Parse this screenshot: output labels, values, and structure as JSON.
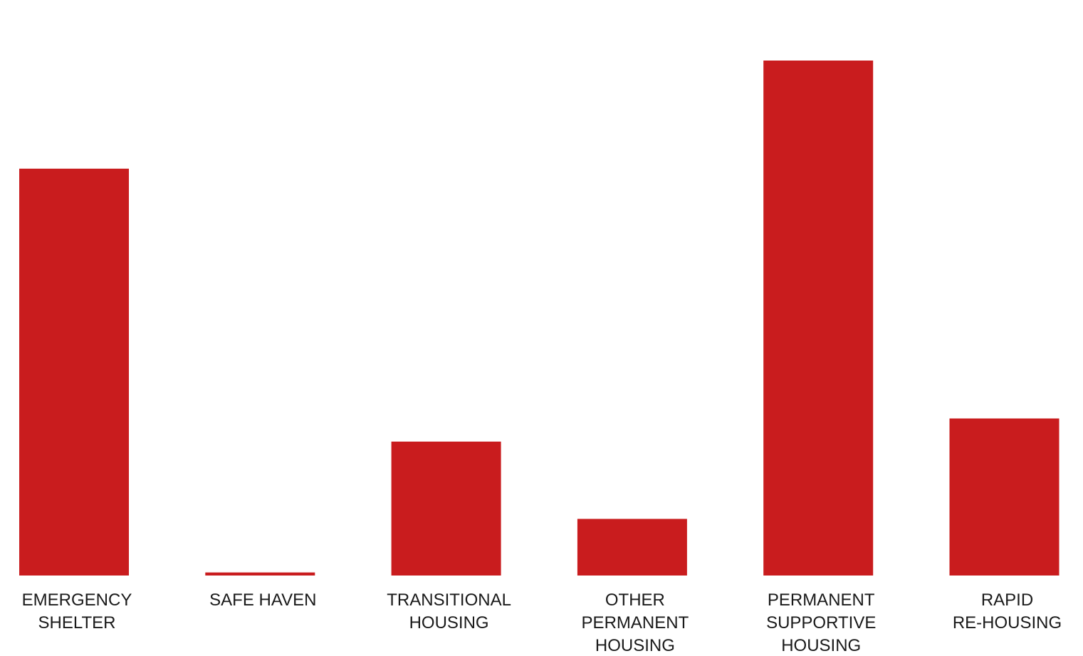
{
  "chart_data": {
    "type": "bar",
    "categories": [
      [
        "EMERGENCY",
        "SHELTER"
      ],
      [
        "SAFE HAVEN"
      ],
      [
        "TRANSITIONAL",
        "HOUSING"
      ],
      [
        "OTHER",
        "PERMANENT",
        "HOUSING"
      ],
      [
        "PERMANENT",
        "SUPPORTIVE",
        "HOUSING"
      ],
      [
        "RAPID",
        "RE-HOUSING"
      ]
    ],
    "values": [
      79,
      0.6,
      26,
      11,
      100,
      30.5
    ],
    "ylim": [
      0,
      100
    ],
    "grid": false,
    "legend": "none",
    "bar_color": "#c91c1e"
  }
}
